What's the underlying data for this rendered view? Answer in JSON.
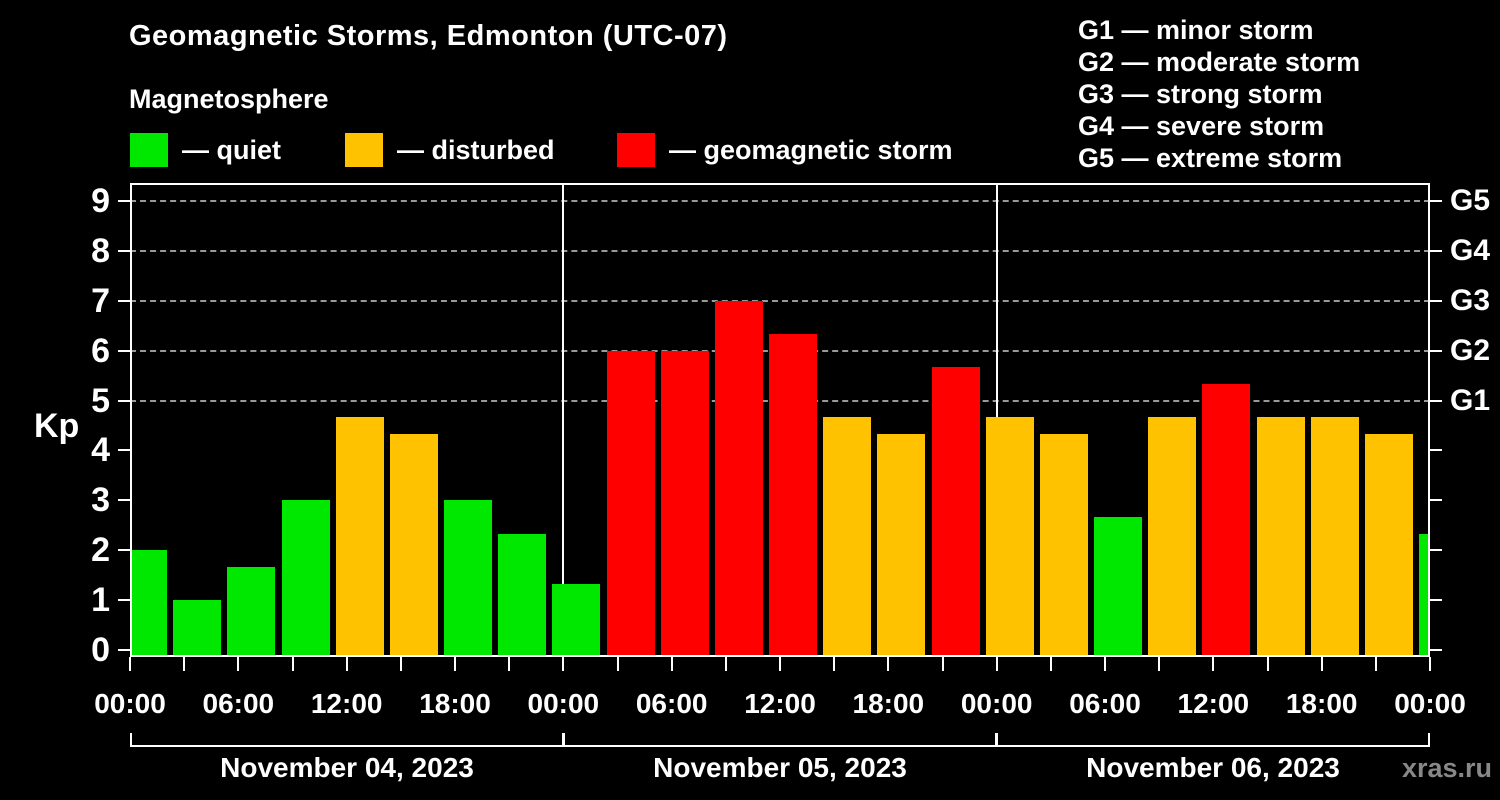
{
  "header": {
    "title": "Geomagnetic Storms, Edmonton (UTC-07)",
    "subtitle": "Magnetosphere"
  },
  "legend": {
    "items": [
      {
        "key": "quiet",
        "label": "— quiet",
        "color": "#00e800"
      },
      {
        "key": "disturbed",
        "label": "— disturbed",
        "color": "#ffc200"
      },
      {
        "key": "storm",
        "label": "— geomagnetic storm",
        "color": "#fe0000"
      }
    ]
  },
  "g_legend": {
    "items": [
      "G1 — minor storm",
      "G2 — moderate storm",
      "G3 — strong storm",
      "G4 — severe storm",
      "G5 — extreme storm"
    ]
  },
  "watermark": "xras.ru",
  "chart_data": {
    "type": "bar",
    "title": "Geomagnetic Storms, Edmonton (UTC-07)",
    "xlabel": "",
    "ylabel": "Kp",
    "ylim": [
      0,
      9
    ],
    "yticks": [
      0,
      1,
      2,
      3,
      4,
      5,
      6,
      7,
      8,
      9
    ],
    "dashed_gridlines_at_kp": [
      5,
      6,
      7,
      8,
      9
    ],
    "right_axis_labels": [
      {
        "kp": 5,
        "label": "G1"
      },
      {
        "kp": 6,
        "label": "G2"
      },
      {
        "kp": 7,
        "label": "G3"
      },
      {
        "kp": 8,
        "label": "G4"
      },
      {
        "kp": 9,
        "label": "G5"
      }
    ],
    "x_axis": {
      "tick_interval_hours": 3,
      "label_interval_hours": 6,
      "labels": [
        "00:00",
        "06:00",
        "12:00",
        "18:00",
        "00:00",
        "06:00",
        "12:00",
        "18:00",
        "00:00",
        "06:00",
        "12:00",
        "18:00",
        "00:00"
      ]
    },
    "bar_interval_hours": 3,
    "color_rule": {
      "quiet_below_kp": 4,
      "storm_at_or_above_kp": 5
    },
    "colors": {
      "quiet": "#00e800",
      "disturbed": "#ffc200",
      "storm": "#fe0000"
    },
    "days": [
      {
        "date": "November 04, 2023",
        "kp_values": [
          2.0,
          1.0,
          1.67,
          3.0,
          4.67,
          4.33,
          3.0,
          2.33
        ]
      },
      {
        "date": "November 05, 2023",
        "kp_values": [
          1.33,
          6.0,
          6.0,
          7.0,
          6.33,
          4.67,
          4.33,
          5.67
        ]
      },
      {
        "date": "November 06, 2023",
        "kp_values": [
          4.67,
          4.33,
          2.67,
          4.67,
          5.33,
          4.67,
          4.67,
          4.33
        ]
      }
    ],
    "next_interval_partial_bar": {
      "kp": 2.33
    }
  }
}
